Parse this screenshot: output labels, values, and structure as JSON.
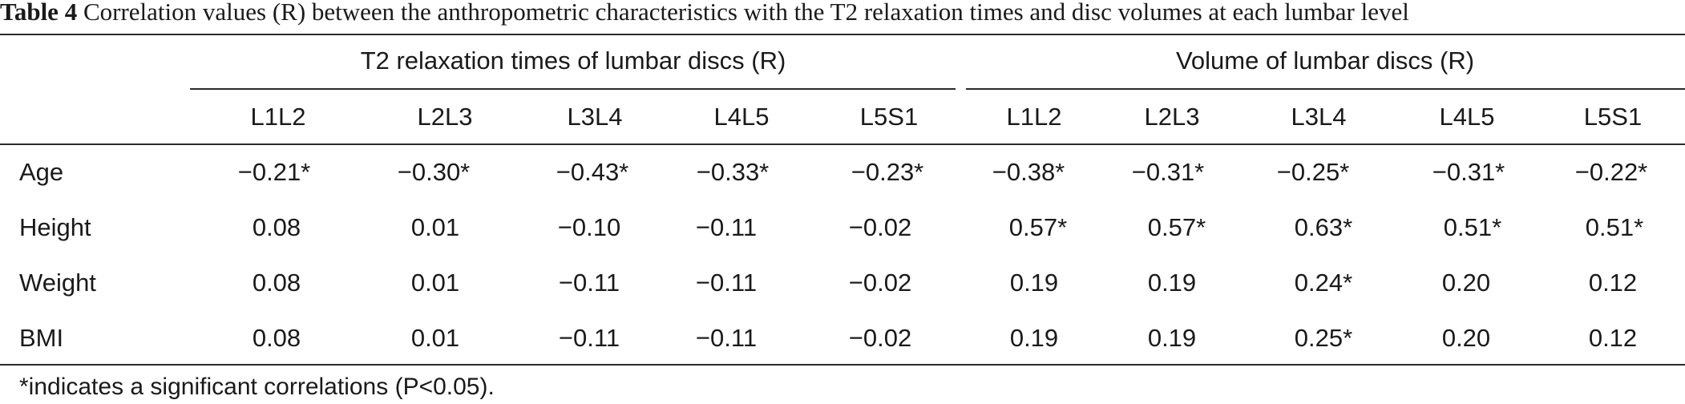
{
  "caption": {
    "label": "Table 4",
    "text": "Correlation values (R) between the anthropometric characteristics with the T2 relaxation times and disc volumes at each lumbar level"
  },
  "groups": [
    {
      "label": "T2 relaxation times of lumbar discs (R)"
    },
    {
      "label": "Volume of lumbar discs (R)"
    }
  ],
  "columns": [
    "L1L2",
    "L2L3",
    "L3L4",
    "L4L5",
    "L5S1",
    "L1L2",
    "L2L3",
    "L3L4",
    "L4L5",
    "L5S1"
  ],
  "rows": [
    {
      "label": "Age",
      "values": [
        "−0.21*",
        "−0.30*",
        "−0.43*",
        "−0.33*",
        "−0.23*",
        "−0.38*",
        "−0.31*",
        "−0.25*",
        "−0.31*",
        "−0.22*"
      ]
    },
    {
      "label": "Height",
      "values": [
        "0.08",
        "0.01",
        "−0.10",
        "−0.11",
        "−0.02",
        "0.57*",
        "0.57*",
        "0.63*",
        "0.51*",
        "0.51*"
      ]
    },
    {
      "label": "Weight",
      "values": [
        "0.08",
        "0.01",
        "−0.11",
        "−0.11",
        "−0.02",
        "0.19",
        "0.19",
        "0.24*",
        "0.20",
        "0.12"
      ]
    },
    {
      "label": "BMI",
      "values": [
        "0.08",
        "0.01",
        "−0.11",
        "−0.11",
        "−0.02",
        "0.19",
        "0.19",
        "0.25*",
        "0.20",
        "0.12"
      ]
    }
  ],
  "footnote": "*indicates a significant correlations (P<0.05)."
}
